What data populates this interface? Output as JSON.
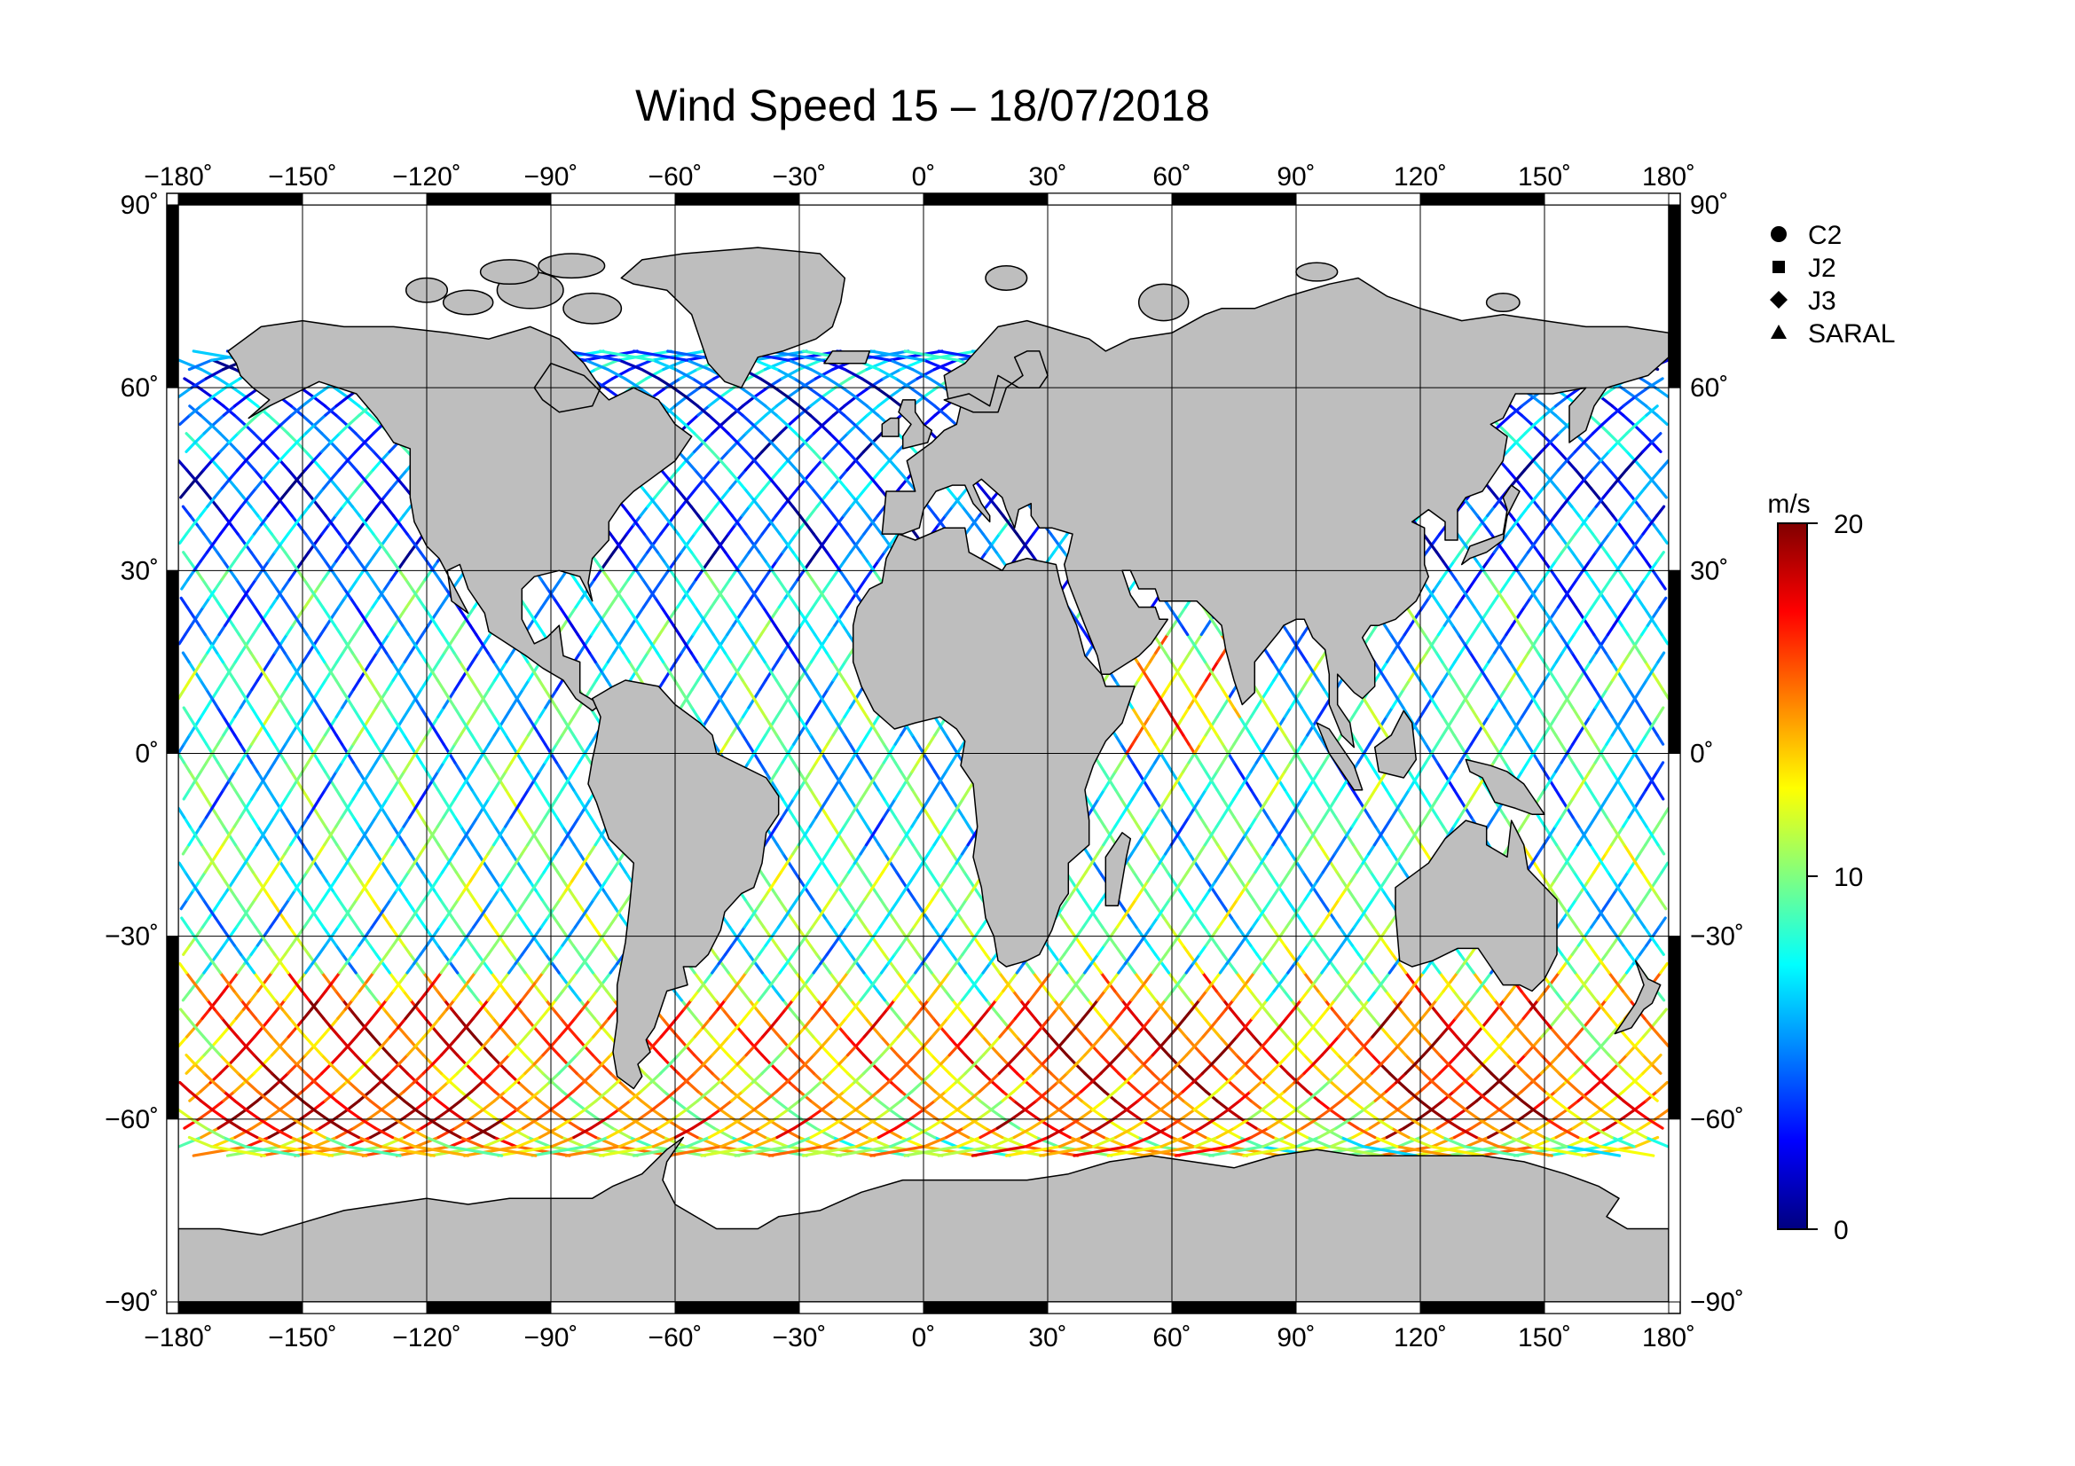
{
  "title": "Wind Speed 15 – 18/07/2018",
  "map": {
    "projection": "equirectangular",
    "lon_range": [
      -180,
      180
    ],
    "lat_range": [
      -90,
      90
    ],
    "grid_lon_step": 30,
    "grid_lat_step": 30,
    "land_color": "#bebebe",
    "ocean_color": "#ffffff",
    "lon_ticks": [
      "−180˚",
      "−150˚",
      "−120˚",
      "−90˚",
      "−60˚",
      "−30˚",
      "0˚",
      "30˚",
      "60˚",
      "90˚",
      "120˚",
      "150˚",
      "180˚"
    ],
    "lat_ticks": [
      "90˚",
      "60˚",
      "30˚",
      "0˚",
      "−30˚",
      "−60˚",
      "−90˚"
    ]
  },
  "legend": {
    "items": [
      {
        "label": "C2",
        "symbol": "circle-icon"
      },
      {
        "label": "J2",
        "symbol": "square-icon"
      },
      {
        "label": "J3",
        "symbol": "diamond-icon"
      },
      {
        "label": "SARAL",
        "symbol": "triangle-icon"
      }
    ]
  },
  "colorbar": {
    "unit": "m/s",
    "min": 0,
    "max": 20,
    "ticks": [
      "20",
      "10",
      "0"
    ],
    "colors": [
      "#000080",
      "#0000ff",
      "#0080ff",
      "#00ffff",
      "#80ff80",
      "#ffff00",
      "#ff8000",
      "#ff0000",
      "#800000"
    ]
  },
  "tracks": {
    "description_levels": {
      "tropics": 7,
      "north_midlat": 4,
      "southern_ocean": 15
    }
  }
}
